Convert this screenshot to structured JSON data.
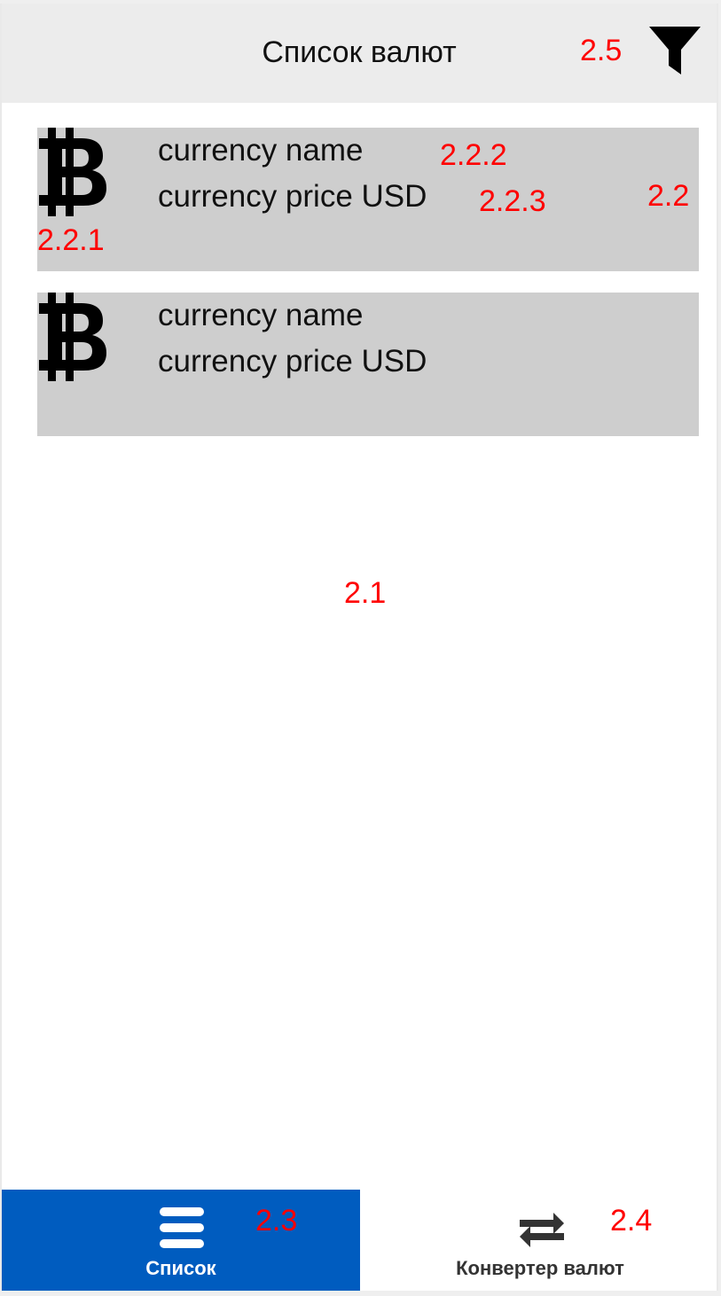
{
  "header": {
    "title": "Список валют",
    "filter_icon": "filter-icon"
  },
  "currencies": [
    {
      "icon": "bitcoin-icon",
      "name": "currency name",
      "price": "currency price USD"
    },
    {
      "icon": "bitcoin-icon",
      "name": "currency name",
      "price": "currency price USD"
    }
  ],
  "tabs": [
    {
      "label": "Список",
      "icon": "menu-icon",
      "active": true
    },
    {
      "label": "Конвертер валют",
      "icon": "swap-arrows-icon",
      "active": false
    }
  ],
  "annotations": {
    "filter": "2.5",
    "card": "2.2",
    "coin_icon": "2.2.1",
    "name": "2.2.2",
    "price": "2.2.3",
    "list_area": "2.1",
    "tab_list": "2.3",
    "tab_converter": "2.4"
  },
  "colors": {
    "header_bg": "#ececec",
    "card_bg": "#cecece",
    "active_tab_bg": "#005cbf",
    "annotation": "#ff0000"
  }
}
